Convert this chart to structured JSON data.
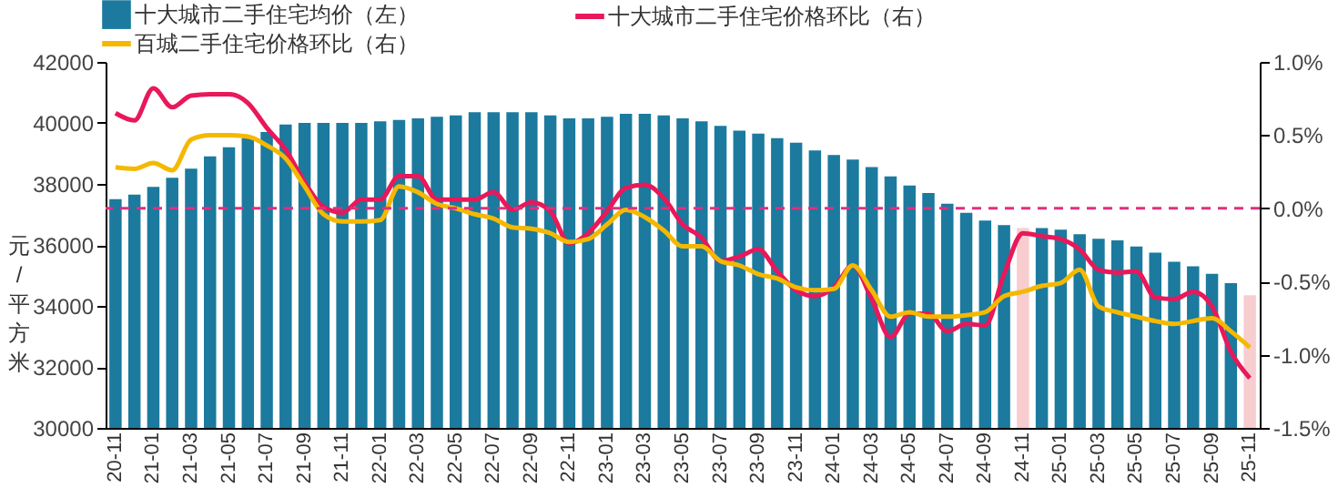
{
  "chart_data": {
    "type": "bar",
    "ylabel": "元/平方米",
    "legend": "top",
    "categories": [
      "20-11",
      null,
      "21-01",
      null,
      "21-03",
      null,
      "21-05",
      null,
      "21-07",
      null,
      "21-09",
      null,
      "21-11",
      null,
      "22-01",
      null,
      "22-03",
      null,
      "22-05",
      null,
      "22-07",
      null,
      "22-09",
      null,
      "22-11",
      null,
      "23-01",
      null,
      "23-03",
      null,
      "23-05",
      null,
      "23-07",
      null,
      "23-09",
      null,
      "23-11",
      null,
      "24-01",
      null,
      "24-03",
      null,
      "24-05",
      null,
      "24-07",
      null,
      "24-09",
      null,
      "24-11",
      null,
      "25-01",
      null,
      "25-03",
      null,
      "25-05",
      null,
      "25-07",
      null,
      "25-09",
      null,
      "25-11"
    ],
    "ylim": [
      30000,
      42000
    ],
    "yticks": [
      30000,
      32000,
      34000,
      36000,
      38000,
      40000,
      42000
    ],
    "y2lim": [
      -1.5,
      1.0
    ],
    "y2ticks": [
      {
        "value": 1.0,
        "label": "1.0%"
      },
      {
        "value": 0.5,
        "label": "0.5%"
      },
      {
        "value": 0,
        "label": "0.0%"
      },
      {
        "value": -0.5,
        "label": "-0.5%"
      },
      {
        "value": -1.0,
        "label": "-1.0%"
      },
      {
        "value": -1.5,
        "label": "-1.5%"
      }
    ],
    "ref_lines": [
      {
        "axis": "y2",
        "value": 0,
        "color": "#e0307f",
        "line_style": "dashed"
      }
    ],
    "series": [
      {
        "name": "十大城市二手住宅均价（左）",
        "color": "#1b7a9e",
        "colors": [
          "#1b7a9e",
          "#1b7a9e",
          "#1b7a9e",
          "#1b7a9e",
          "#1b7a9e",
          "#1b7a9e",
          "#1b7a9e",
          "#1b7a9e",
          "#1b7a9e",
          "#1b7a9e",
          "#1b7a9e",
          "#1b7a9e",
          "#1b7a9e",
          "#1b7a9e",
          "#1b7a9e",
          "#1b7a9e",
          "#1b7a9e",
          "#1b7a9e",
          "#1b7a9e",
          "#1b7a9e",
          "#1b7a9e",
          "#1b7a9e",
          "#1b7a9e",
          "#1b7a9e",
          "#1b7a9e",
          "#1b7a9e",
          "#1b7a9e",
          "#1b7a9e",
          "#1b7a9e",
          "#1b7a9e",
          "#1b7a9e",
          "#1b7a9e",
          "#1b7a9e",
          "#1b7a9e",
          "#1b7a9e",
          "#1b7a9e",
          "#1b7a9e",
          "#1b7a9e",
          "#1b7a9e",
          "#1b7a9e",
          "#1b7a9e",
          "#1b7a9e",
          "#1b7a9e",
          "#1b7a9e",
          "#1b7a9e",
          "#1b7a9e",
          "#1b7a9e",
          "#1b7a9e",
          "#f8cdd0",
          "#1b7a9e",
          "#1b7a9e",
          "#1b7a9e",
          "#1b7a9e",
          "#1b7a9e",
          "#1b7a9e",
          "#1b7a9e",
          "#1b7a9e",
          "#1b7a9e",
          "#1b7a9e",
          "#1b7a9e",
          "#f8cdd0"
        ],
        "values": [
          37500,
          37650,
          37900,
          38200,
          38500,
          38900,
          39200,
          39500,
          39700,
          39950,
          40000,
          40000,
          40000,
          40000,
          40050,
          40100,
          40150,
          40200,
          40250,
          40350,
          40350,
          40350,
          40350,
          40250,
          40150,
          40150,
          40200,
          40300,
          40300,
          40250,
          40150,
          40050,
          39900,
          39750,
          39650,
          39500,
          39350,
          39100,
          38950,
          38800,
          38550,
          38250,
          37950,
          37700,
          37350,
          37050,
          36800,
          36650,
          36550,
          36550,
          36500,
          36350,
          36200,
          36150,
          35950,
          35750,
          35450,
          35300,
          35050,
          34750,
          34350
        ]
      },
      {
        "name": "十大城市二手住宅价格环比（右）",
        "type": "line",
        "axis": "y2",
        "color": "#e8185a",
        "values": [
          0.65,
          0.6,
          0.82,
          0.69,
          0.77,
          0.78,
          0.78,
          0.72,
          0.55,
          0.4,
          0.18,
          0.01,
          -0.03,
          0.06,
          0.06,
          0.22,
          0.22,
          0.06,
          0.06,
          0.06,
          0.11,
          -0.01,
          0.04,
          -0.02,
          -0.24,
          -0.17,
          -0.02,
          0.14,
          0.16,
          0.07,
          -0.11,
          -0.2,
          -0.36,
          -0.33,
          -0.28,
          -0.43,
          -0.56,
          -0.6,
          -0.54,
          -0.39,
          -0.62,
          -0.88,
          -0.72,
          -0.72,
          -0.84,
          -0.79,
          -0.8,
          -0.45,
          -0.17,
          -0.19,
          -0.21,
          -0.28,
          -0.42,
          -0.44,
          -0.43,
          -0.61,
          -0.62,
          -0.57,
          -0.67,
          -0.98,
          -1.16
        ]
      },
      {
        "name": "百城二手住宅价格环比（右）",
        "type": "line",
        "axis": "y2",
        "color": "#f5b800",
        "values": [
          0.28,
          0.27,
          0.31,
          0.26,
          0.47,
          0.5,
          0.5,
          0.49,
          0.43,
          0.34,
          0.15,
          -0.04,
          -0.09,
          -0.09,
          -0.08,
          0.15,
          0.11,
          0.03,
          0.0,
          -0.04,
          -0.07,
          -0.13,
          -0.14,
          -0.17,
          -0.23,
          -0.21,
          -0.11,
          -0.01,
          -0.06,
          -0.15,
          -0.26,
          -0.26,
          -0.36,
          -0.39,
          -0.45,
          -0.48,
          -0.54,
          -0.56,
          -0.55,
          -0.39,
          -0.56,
          -0.74,
          -0.71,
          -0.74,
          -0.74,
          -0.73,
          -0.71,
          -0.6,
          -0.57,
          -0.53,
          -0.51,
          -0.42,
          -0.67,
          -0.71,
          -0.74,
          -0.77,
          -0.79,
          -0.77,
          -0.75,
          -0.84,
          -0.95
        ]
      }
    ]
  }
}
